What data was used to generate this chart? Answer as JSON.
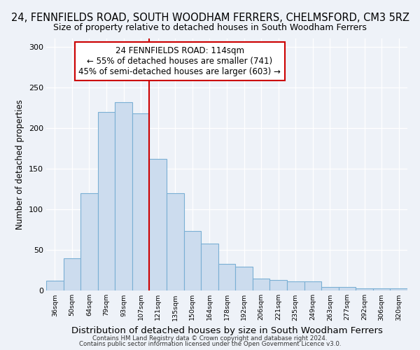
{
  "title": "24, FENNFIELDS ROAD, SOUTH WOODHAM FERRERS, CHELMSFORD, CM3 5RZ",
  "subtitle": "Size of property relative to detached houses in South Woodham Ferrers",
  "xlabel": "Distribution of detached houses by size in South Woodham Ferrers",
  "ylabel": "Number of detached properties",
  "categories": [
    "36sqm",
    "50sqm",
    "64sqm",
    "79sqm",
    "93sqm",
    "107sqm",
    "121sqm",
    "135sqm",
    "150sqm",
    "164sqm",
    "178sqm",
    "192sqm",
    "206sqm",
    "221sqm",
    "235sqm",
    "249sqm",
    "263sqm",
    "277sqm",
    "292sqm",
    "306sqm",
    "320sqm"
  ],
  "values": [
    12,
    40,
    120,
    220,
    232,
    218,
    162,
    120,
    73,
    58,
    33,
    29,
    15,
    13,
    11,
    11,
    4,
    4,
    3,
    3,
    3
  ],
  "bar_color": "#ccdcee",
  "bar_edge_color": "#7aafd4",
  "vline_color": "#cc0000",
  "annotation_line1": "24 FENNFIELDS ROAD: 114sqm",
  "annotation_line2": "← 55% of detached houses are smaller (741)",
  "annotation_line3": "45% of semi-detached houses are larger (603) →",
  "annotation_box_color": "#ffffff",
  "annotation_box_edge_color": "#cc0000",
  "annotation_fontsize": 8.5,
  "title_fontsize": 10.5,
  "subtitle_fontsize": 9,
  "xlabel_fontsize": 9.5,
  "ylabel_fontsize": 8.5,
  "ylim": [
    0,
    310
  ],
  "yticks": [
    0,
    50,
    100,
    150,
    200,
    250,
    300
  ],
  "footer1": "Contains HM Land Registry data © Crown copyright and database right 2024.",
  "footer2": "Contains public sector information licensed under the Open Government Licence v3.0.",
  "bg_color": "#eef2f8",
  "plot_bg_color": "#eef2f8",
  "grid_color": "#ffffff"
}
